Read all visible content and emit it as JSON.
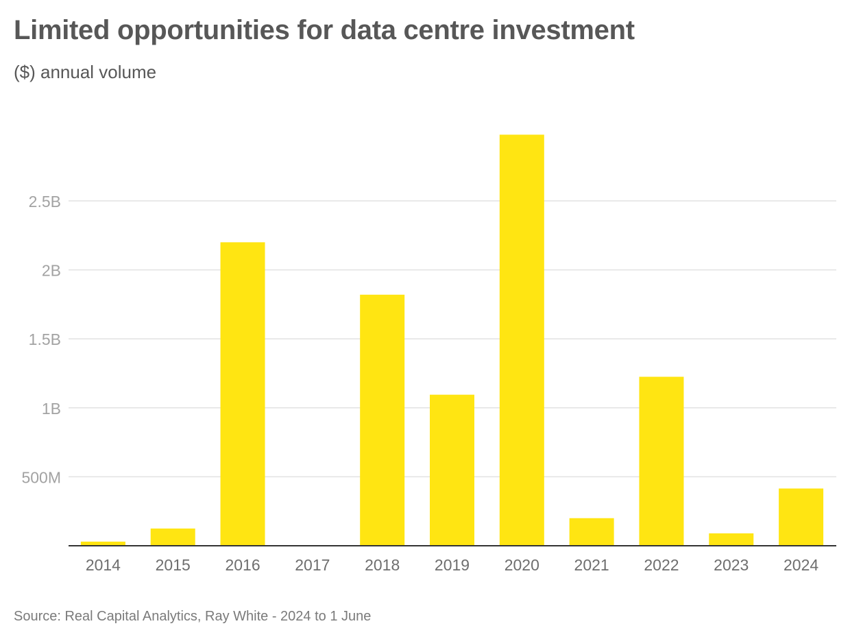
{
  "chart_data": {
    "type": "bar",
    "title": "Limited opportunities for data centre investment",
    "subtitle": "($) annual volume",
    "source": "Source: Real Capital Analytics, Ray White - 2024 to 1 June",
    "categories": [
      "2014",
      "2015",
      "2016",
      "2017",
      "2018",
      "2019",
      "2020",
      "2021",
      "2022",
      "2023",
      "2024"
    ],
    "values": [
      30000000,
      125000000,
      2200000000,
      0,
      1820000000,
      1095000000,
      2980000000,
      200000000,
      1225000000,
      90000000,
      415000000
    ],
    "ylim": [
      0,
      3000000000
    ],
    "yticks": [
      500000000,
      1000000000,
      1500000000,
      2000000000,
      2500000000
    ],
    "ytick_labels": [
      "500M",
      "1B",
      "1.5B",
      "2B",
      "2.5B"
    ],
    "grid": true,
    "colors": {
      "bar": "#ffe512",
      "grid": "#e2e2e2",
      "axis": "#333333"
    }
  }
}
